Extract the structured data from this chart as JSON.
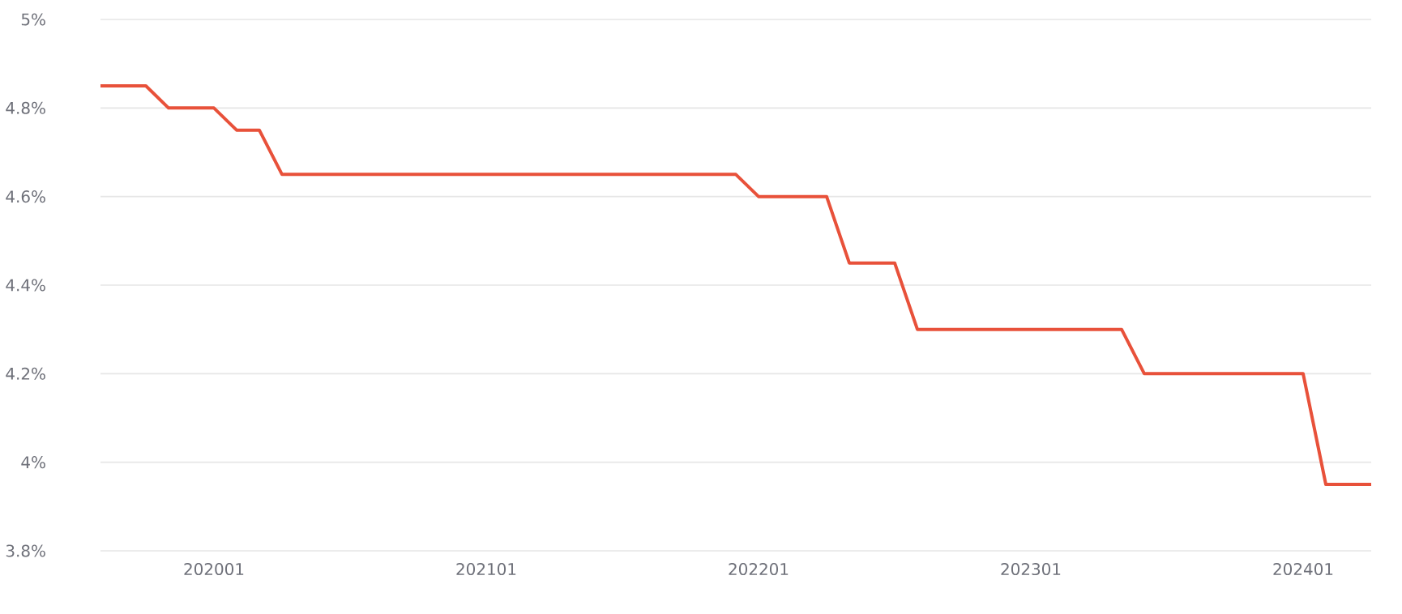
{
  "chart_data": {
    "type": "line",
    "categories": [
      null,
      null,
      null,
      null,
      null,
      "202001",
      null,
      null,
      null,
      null,
      null,
      null,
      null,
      null,
      null,
      null,
      null,
      "202101",
      null,
      null,
      null,
      null,
      null,
      null,
      null,
      null,
      null,
      null,
      null,
      "202201",
      null,
      null,
      null,
      null,
      null,
      null,
      null,
      null,
      null,
      null,
      null,
      "202301",
      null,
      null,
      null,
      null,
      null,
      null,
      null,
      null,
      null,
      null,
      null,
      "202401",
      null,
      null,
      null
    ],
    "series": [
      {
        "color": "#e8513a",
        "values": [
          4.85,
          4.85,
          4.85,
          4.8,
          4.8,
          4.8,
          4.75,
          4.75,
          4.65,
          4.65,
          4.65,
          4.65,
          4.65,
          4.65,
          4.65,
          4.65,
          4.65,
          4.65,
          4.65,
          4.65,
          4.65,
          4.65,
          4.65,
          4.65,
          4.65,
          4.65,
          4.65,
          4.65,
          4.65,
          4.6,
          4.6,
          4.6,
          4.6,
          4.45,
          4.45,
          4.45,
          4.3,
          4.3,
          4.3,
          4.3,
          4.3,
          4.3,
          4.3,
          4.3,
          4.3,
          4.3,
          4.2,
          4.2,
          4.2,
          4.2,
          4.2,
          4.2,
          4.2,
          4.2,
          3.95,
          3.95,
          3.95
        ]
      }
    ],
    "ylim": [
      3.8,
      5
    ],
    "yticks": [
      {
        "value": 3.8,
        "label": "3.8%"
      },
      {
        "value": 4,
        "label": "4%"
      },
      {
        "value": 4.2,
        "label": "4.2%"
      },
      {
        "value": 4.4,
        "label": "4.4%"
      },
      {
        "value": 4.6,
        "label": "4.6%"
      },
      {
        "value": 4.8,
        "label": "4.8%"
      },
      {
        "value": 5,
        "label": "5%"
      }
    ],
    "grid": "y",
    "marker": "none",
    "line_style": "solid"
  }
}
